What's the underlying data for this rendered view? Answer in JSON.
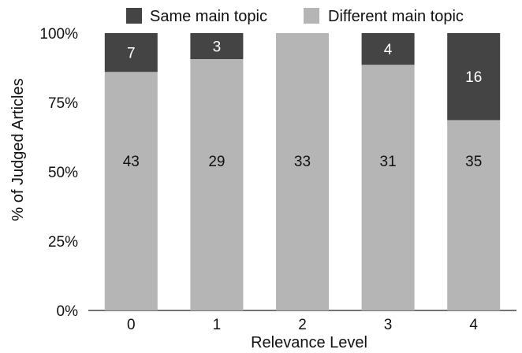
{
  "chart_data": {
    "type": "bar",
    "stacked": true,
    "percent_stacked": true,
    "categories": [
      "0",
      "1",
      "2",
      "3",
      "4"
    ],
    "series": [
      {
        "name": "Different main topic",
        "values": [
          43,
          29,
          33,
          31,
          35
        ],
        "color": "#b5b5b5",
        "label_color": "#111111"
      },
      {
        "name": "Same main topic",
        "values": [
          7,
          3,
          0,
          4,
          16
        ],
        "color": "#444444",
        "label_color": "#ffffff"
      }
    ],
    "xlabel": "Relevance Level",
    "ylabel": "% of Judged Articles",
    "ylim": [
      0,
      100
    ],
    "yticks": [
      "0%",
      "25%",
      "50%",
      "75%",
      "100%"
    ],
    "legend_position": "top",
    "legend_order": [
      "Same main topic",
      "Different main topic"
    ],
    "grid": false
  }
}
